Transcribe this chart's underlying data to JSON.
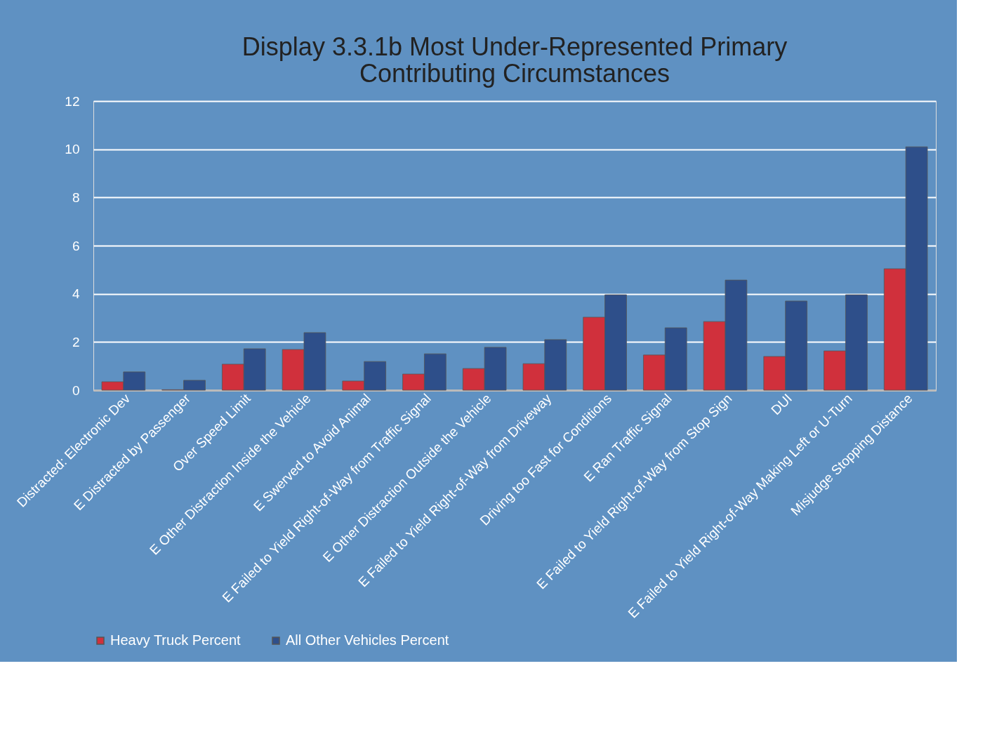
{
  "chart_data": {
    "type": "bar",
    "title": [
      "Display 3.3.1b  Most Under-Represented Primary",
      "Contributing Circumstances"
    ],
    "categories": [
      "Distracted: Electronic Dev",
      "E Distracted by Passenger",
      "Over Speed Limit",
      "E Other Distraction Inside the Vehicle",
      "E Swerved to Avoid Animal",
      "E Failed to Yield Right-of-Way from Traffic Signal",
      "E Other Distraction Outside the Vehicle",
      "E Failed to Yield Right-of-Way from Driveway",
      "Driving too Fast for Conditions",
      "E Ran Traffic Signal",
      "E Failed to Yield Right-of-Way from Stop Sign",
      "DUI",
      "E Failed to Yield Right-of-Way Making Left or U-Turn",
      "Misjudge Stopping Distance"
    ],
    "series": [
      {
        "name": "Heavy Truck Percent",
        "color": "#d0303c",
        "values": [
          0.35,
          0.02,
          1.08,
          1.69,
          0.38,
          0.67,
          0.9,
          1.1,
          3.03,
          1.46,
          2.85,
          1.4,
          1.63,
          5.04
        ]
      },
      {
        "name": "All Other Vehicles Percent",
        "color": "#2e4f8a",
        "values": [
          0.76,
          0.41,
          1.72,
          2.39,
          1.19,
          1.51,
          1.78,
          2.1,
          3.96,
          2.59,
          4.57,
          3.7,
          3.96,
          10.1
        ]
      }
    ],
    "ylim": [
      0,
      12
    ],
    "yticks": [
      0,
      2,
      4,
      6,
      8,
      10,
      12
    ],
    "grid": "y",
    "legend": "bottom"
  }
}
